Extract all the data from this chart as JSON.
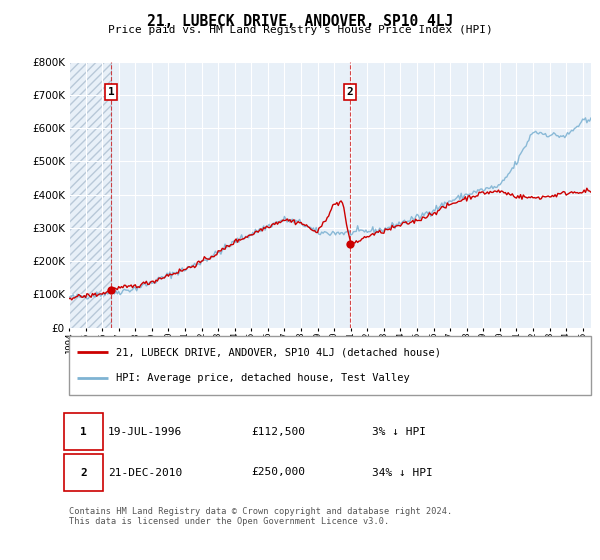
{
  "title": "21, LUBECK DRIVE, ANDOVER, SP10 4LJ",
  "subtitle": "Price paid vs. HM Land Registry's House Price Index (HPI)",
  "property_label": "21, LUBECK DRIVE, ANDOVER, SP10 4LJ (detached house)",
  "hpi_label": "HPI: Average price, detached house, Test Valley",
  "ann1": {
    "num": "1",
    "date": "19-JUL-1996",
    "price": "£112,500",
    "pct": "3% ↓ HPI",
    "x_year": 1996.55,
    "y_val": 112500
  },
  "ann2": {
    "num": "2",
    "date": "21-DEC-2010",
    "price": "£250,000",
    "pct": "34% ↓ HPI",
    "x_year": 2010.97,
    "y_val": 250000
  },
  "footer": "Contains HM Land Registry data © Crown copyright and database right 2024.\nThis data is licensed under the Open Government Licence v3.0.",
  "ylim": [
    0,
    800000
  ],
  "yticks": [
    0,
    100000,
    200000,
    300000,
    400000,
    500000,
    600000,
    700000,
    800000
  ],
  "ytick_labels": [
    "£0",
    "£100K",
    "£200K",
    "£300K",
    "£400K",
    "£500K",
    "£600K",
    "£700K",
    "£800K"
  ],
  "xmin": 1994.0,
  "xmax": 2025.5,
  "property_color": "#cc0000",
  "hpi_color": "#7fb3d3",
  "chart_bg": "#e8f0f8",
  "hatch_end": 1996.55,
  "grid_color": "#ffffff",
  "ann_box_color": "#cc0000",
  "legend_border": "#999999"
}
